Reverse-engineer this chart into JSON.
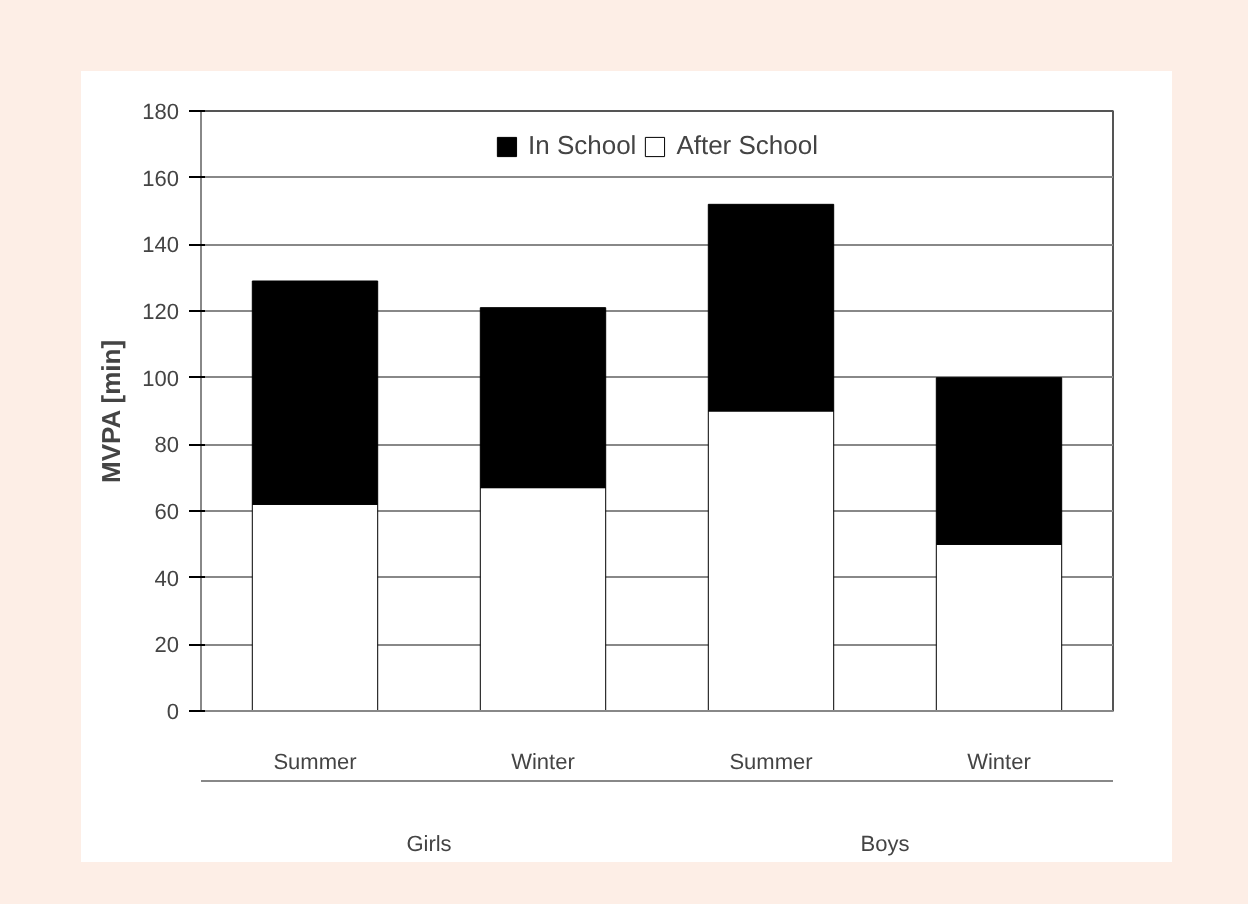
{
  "chart_data": {
    "type": "bar",
    "stacked": true,
    "ylabel": "MVPA [min]",
    "categories": [
      "Summer",
      "Winter",
      "Summer",
      "Winter"
    ],
    "series": [
      {
        "name": "After School",
        "color": "#ffffff",
        "values": [
          62,
          67,
          90,
          50
        ]
      },
      {
        "name": "In School",
        "color": "#000000",
        "values": [
          67,
          54,
          62,
          50
        ]
      }
    ],
    "annotations": [
      "Girls",
      "Boys"
    ],
    "ylim": [
      0,
      180
    ],
    "yticks": [
      0,
      20,
      40,
      60,
      80,
      100,
      120,
      140,
      160,
      180
    ],
    "grid": "y",
    "legend": "top"
  }
}
